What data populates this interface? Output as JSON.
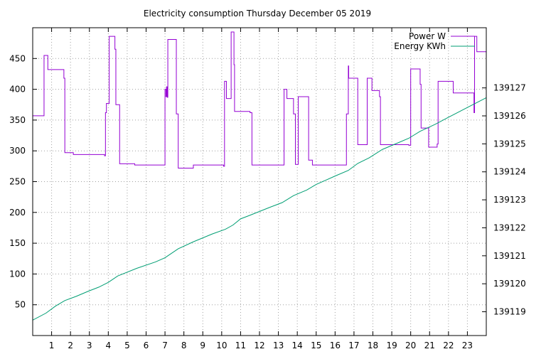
{
  "chart_data": {
    "type": "line",
    "title": "Electricity consumption Thursday December 05 2019",
    "xlabel": "",
    "ylabel": "",
    "y2label": "",
    "grid": true,
    "legend_position": "top-right",
    "x_range": [
      0,
      24
    ],
    "x_ticks": [
      1,
      2,
      3,
      4,
      5,
      6,
      7,
      8,
      9,
      10,
      11,
      12,
      13,
      14,
      15,
      16,
      17,
      18,
      19,
      20,
      21,
      22,
      23
    ],
    "y_range": [
      0,
      500
    ],
    "y_ticks": [
      50,
      100,
      150,
      200,
      250,
      300,
      350,
      400,
      450
    ],
    "y2_range": [
      139118.15,
      139129.15
    ],
    "y2_ticks": [
      139119,
      139120,
      139121,
      139122,
      139123,
      139124,
      139125,
      139126,
      139127
    ],
    "series": [
      {
        "name": "Power W",
        "axis": "y1",
        "color": "#9400d3",
        "step": true,
        "points": [
          [
            0,
            357
          ],
          [
            0.6,
            357
          ],
          [
            0.6,
            455
          ],
          [
            0.8,
            455
          ],
          [
            0.8,
            432
          ],
          [
            1.65,
            432
          ],
          [
            1.65,
            418
          ],
          [
            1.7,
            418
          ],
          [
            1.7,
            297
          ],
          [
            2.15,
            297
          ],
          [
            2.15,
            294
          ],
          [
            3.8,
            294
          ],
          [
            3.8,
            292
          ],
          [
            3.85,
            292
          ],
          [
            3.85,
            362
          ],
          [
            3.9,
            362
          ],
          [
            3.9,
            377
          ],
          [
            4.05,
            377
          ],
          [
            4.05,
            486
          ],
          [
            4.35,
            486
          ],
          [
            4.35,
            465
          ],
          [
            4.4,
            465
          ],
          [
            4.4,
            375
          ],
          [
            4.6,
            375
          ],
          [
            4.6,
            279
          ],
          [
            5.4,
            279
          ],
          [
            5.4,
            277
          ],
          [
            7.0,
            277
          ],
          [
            7.0,
            400
          ],
          [
            7.05,
            400
          ],
          [
            7.05,
            388
          ],
          [
            7.08,
            388
          ],
          [
            7.08,
            404
          ],
          [
            7.12,
            404
          ],
          [
            7.12,
            387
          ],
          [
            7.15,
            387
          ],
          [
            7.15,
            481
          ],
          [
            7.6,
            481
          ],
          [
            7.6,
            360
          ],
          [
            7.7,
            360
          ],
          [
            7.7,
            272
          ],
          [
            8.5,
            272
          ],
          [
            8.5,
            277
          ],
          [
            10.1,
            277
          ],
          [
            10.1,
            275
          ],
          [
            10.15,
            275
          ],
          [
            10.15,
            413
          ],
          [
            10.25,
            413
          ],
          [
            10.25,
            385
          ],
          [
            10.5,
            385
          ],
          [
            10.5,
            493
          ],
          [
            10.65,
            493
          ],
          [
            10.65,
            440
          ],
          [
            10.68,
            440
          ],
          [
            10.68,
            364
          ],
          [
            11.5,
            364
          ],
          [
            11.5,
            362
          ],
          [
            11.6,
            362
          ],
          [
            11.6,
            277
          ],
          [
            13.3,
            277
          ],
          [
            13.3,
            400
          ],
          [
            13.45,
            400
          ],
          [
            13.45,
            385
          ],
          [
            13.8,
            385
          ],
          [
            13.8,
            360
          ],
          [
            13.9,
            360
          ],
          [
            13.9,
            278
          ],
          [
            14.05,
            278
          ],
          [
            14.05,
            388
          ],
          [
            14.6,
            388
          ],
          [
            14.6,
            285
          ],
          [
            14.8,
            285
          ],
          [
            14.8,
            277
          ],
          [
            16.6,
            277
          ],
          [
            16.6,
            360
          ],
          [
            16.7,
            360
          ],
          [
            16.7,
            438
          ],
          [
            16.72,
            438
          ],
          [
            16.72,
            418
          ],
          [
            17.2,
            418
          ],
          [
            17.2,
            310
          ],
          [
            17.7,
            310
          ],
          [
            17.7,
            418
          ],
          [
            17.95,
            418
          ],
          [
            17.95,
            398
          ],
          [
            18.35,
            398
          ],
          [
            18.35,
            388
          ],
          [
            18.4,
            388
          ],
          [
            18.4,
            310
          ],
          [
            19.9,
            310
          ],
          [
            19.9,
            309
          ],
          [
            20.0,
            309
          ],
          [
            20.0,
            433
          ],
          [
            20.5,
            433
          ],
          [
            20.5,
            408
          ],
          [
            20.55,
            408
          ],
          [
            20.55,
            337
          ],
          [
            20.95,
            337
          ],
          [
            20.95,
            306
          ],
          [
            21.4,
            306
          ],
          [
            21.4,
            311
          ],
          [
            21.45,
            311
          ],
          [
            21.45,
            413
          ],
          [
            22.25,
            413
          ],
          [
            22.25,
            394
          ],
          [
            23.35,
            394
          ],
          [
            23.35,
            362
          ],
          [
            23.38,
            362
          ],
          [
            23.38,
            486
          ],
          [
            23.5,
            486
          ],
          [
            23.5,
            461
          ],
          [
            24,
            461
          ]
        ]
      },
      {
        "name": "Energy KWh",
        "axis": "y2",
        "color": "#009e73",
        "step": false,
        "points": [
          [
            0,
            139118.7
          ],
          [
            0.7,
            139118.95
          ],
          [
            1.2,
            139119.2
          ],
          [
            1.7,
            139119.4
          ],
          [
            2.3,
            139119.55
          ],
          [
            3.0,
            139119.75
          ],
          [
            3.5,
            139119.88
          ],
          [
            4.0,
            139120.05
          ],
          [
            4.5,
            139120.28
          ],
          [
            5.5,
            139120.55
          ],
          [
            6.5,
            139120.78
          ],
          [
            7.0,
            139120.93
          ],
          [
            7.7,
            139121.25
          ],
          [
            8.5,
            139121.5
          ],
          [
            9.5,
            139121.78
          ],
          [
            10.2,
            139121.95
          ],
          [
            10.6,
            139122.1
          ],
          [
            11.0,
            139122.32
          ],
          [
            11.5,
            139122.45
          ],
          [
            12.5,
            139122.72
          ],
          [
            13.2,
            139122.9
          ],
          [
            13.8,
            139123.15
          ],
          [
            14.5,
            139123.35
          ],
          [
            15.0,
            139123.55
          ],
          [
            15.5,
            139123.7
          ],
          [
            16.0,
            139123.85
          ],
          [
            16.7,
            139124.05
          ],
          [
            17.2,
            139124.3
          ],
          [
            17.8,
            139124.5
          ],
          [
            18.5,
            139124.8
          ],
          [
            19.2,
            139125.0
          ],
          [
            19.9,
            139125.2
          ],
          [
            20.5,
            139125.45
          ],
          [
            21.3,
            139125.7
          ],
          [
            22.0,
            139125.95
          ],
          [
            23.0,
            139126.3
          ],
          [
            24,
            139126.65
          ]
        ]
      }
    ]
  }
}
